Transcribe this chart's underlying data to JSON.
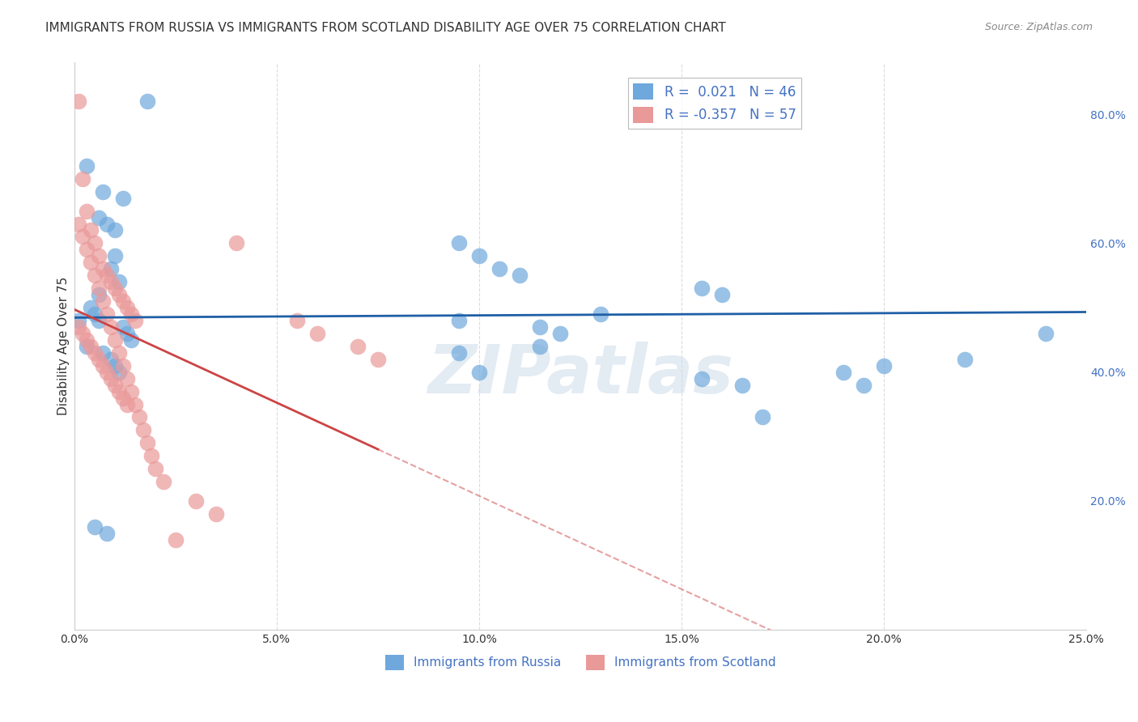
{
  "title": "IMMIGRANTS FROM RUSSIA VS IMMIGRANTS FROM SCOTLAND DISABILITY AGE OVER 75 CORRELATION CHART",
  "source": "Source: ZipAtlas.com",
  "xlabel_bottom": "",
  "ylabel": "Disability Age Over 75",
  "xmin": 0.0,
  "xmax": 0.25,
  "ymin": 0.0,
  "ymax": 0.88,
  "xtick_labels": [
    "0.0%",
    "5.0%",
    "10.0%",
    "15.0%",
    "20.0%",
    "25.0%"
  ],
  "xtick_values": [
    0.0,
    0.05,
    0.1,
    0.15,
    0.2,
    0.25
  ],
  "ytick_labels_right": [
    "20.0%",
    "40.0%",
    "60.0%",
    "80.0%"
  ],
  "ytick_values_right": [
    0.2,
    0.4,
    0.6,
    0.8
  ],
  "russia_color": "#6fa8dc",
  "scotland_color": "#ea9999",
  "russia_R": 0.021,
  "russia_N": 46,
  "scotland_R": -0.357,
  "scotland_N": 57,
  "russia_points_x": [
    0.001,
    0.018,
    0.003,
    0.007,
    0.008,
    0.01,
    0.009,
    0.011,
    0.006,
    0.004,
    0.005,
    0.006,
    0.012,
    0.013,
    0.014,
    0.003,
    0.007,
    0.009,
    0.01,
    0.011,
    0.095,
    0.115,
    0.12,
    0.13,
    0.155,
    0.16,
    0.095,
    0.1,
    0.105,
    0.11,
    0.115,
    0.095,
    0.1,
    0.155,
    0.165,
    0.17,
    0.19,
    0.2,
    0.195,
    0.22,
    0.005,
    0.008,
    0.01,
    0.012,
    0.24,
    0.006
  ],
  "russia_points_y": [
    0.48,
    0.82,
    0.72,
    0.68,
    0.63,
    0.58,
    0.56,
    0.54,
    0.52,
    0.5,
    0.49,
    0.48,
    0.47,
    0.46,
    0.45,
    0.44,
    0.43,
    0.42,
    0.41,
    0.4,
    0.48,
    0.47,
    0.46,
    0.49,
    0.53,
    0.52,
    0.6,
    0.58,
    0.56,
    0.55,
    0.44,
    0.43,
    0.4,
    0.39,
    0.38,
    0.33,
    0.4,
    0.41,
    0.38,
    0.42,
    0.16,
    0.15,
    0.62,
    0.67,
    0.46,
    0.64
  ],
  "scotland_points_x": [
    0.001,
    0.002,
    0.003,
    0.004,
    0.005,
    0.006,
    0.007,
    0.008,
    0.009,
    0.01,
    0.011,
    0.012,
    0.013,
    0.014,
    0.015,
    0.001,
    0.002,
    0.003,
    0.004,
    0.005,
    0.006,
    0.007,
    0.008,
    0.009,
    0.01,
    0.011,
    0.012,
    0.013,
    0.001,
    0.002,
    0.003,
    0.004,
    0.005,
    0.006,
    0.007,
    0.008,
    0.009,
    0.01,
    0.011,
    0.012,
    0.013,
    0.014,
    0.015,
    0.016,
    0.017,
    0.018,
    0.019,
    0.02,
    0.022,
    0.025,
    0.03,
    0.035,
    0.04,
    0.055,
    0.06,
    0.07,
    0.075
  ],
  "scotland_points_y": [
    0.82,
    0.7,
    0.65,
    0.62,
    0.6,
    0.58,
    0.56,
    0.55,
    0.54,
    0.53,
    0.52,
    0.51,
    0.5,
    0.49,
    0.48,
    0.47,
    0.46,
    0.45,
    0.44,
    0.43,
    0.42,
    0.41,
    0.4,
    0.39,
    0.38,
    0.37,
    0.36,
    0.35,
    0.63,
    0.61,
    0.59,
    0.57,
    0.55,
    0.53,
    0.51,
    0.49,
    0.47,
    0.45,
    0.43,
    0.41,
    0.39,
    0.37,
    0.35,
    0.33,
    0.31,
    0.29,
    0.27,
    0.25,
    0.23,
    0.14,
    0.2,
    0.18,
    0.6,
    0.48,
    0.46,
    0.44,
    0.42
  ],
  "watermark": "ZIPatlas",
  "background_color": "#ffffff",
  "grid_color": "#cccccc",
  "title_fontsize": 11,
  "axis_label_fontsize": 11,
  "tick_fontsize": 10
}
